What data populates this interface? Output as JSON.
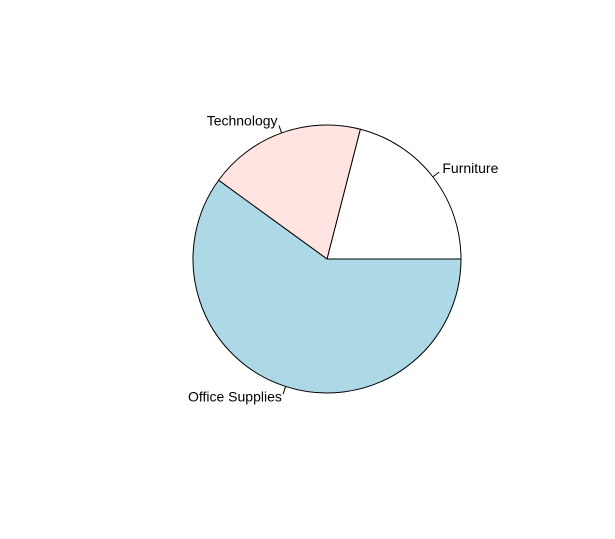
{
  "chart_data": {
    "type": "pie",
    "title": "",
    "labels": [
      "Furniture",
      "Technology",
      "Office Supplies"
    ],
    "values": [
      21,
      19,
      60
    ],
    "colors": [
      "#FFFFFF",
      "#FFE4E1",
      "#ADD8E6"
    ],
    "start_angle_deg": 0,
    "direction": "counterclockwise"
  }
}
